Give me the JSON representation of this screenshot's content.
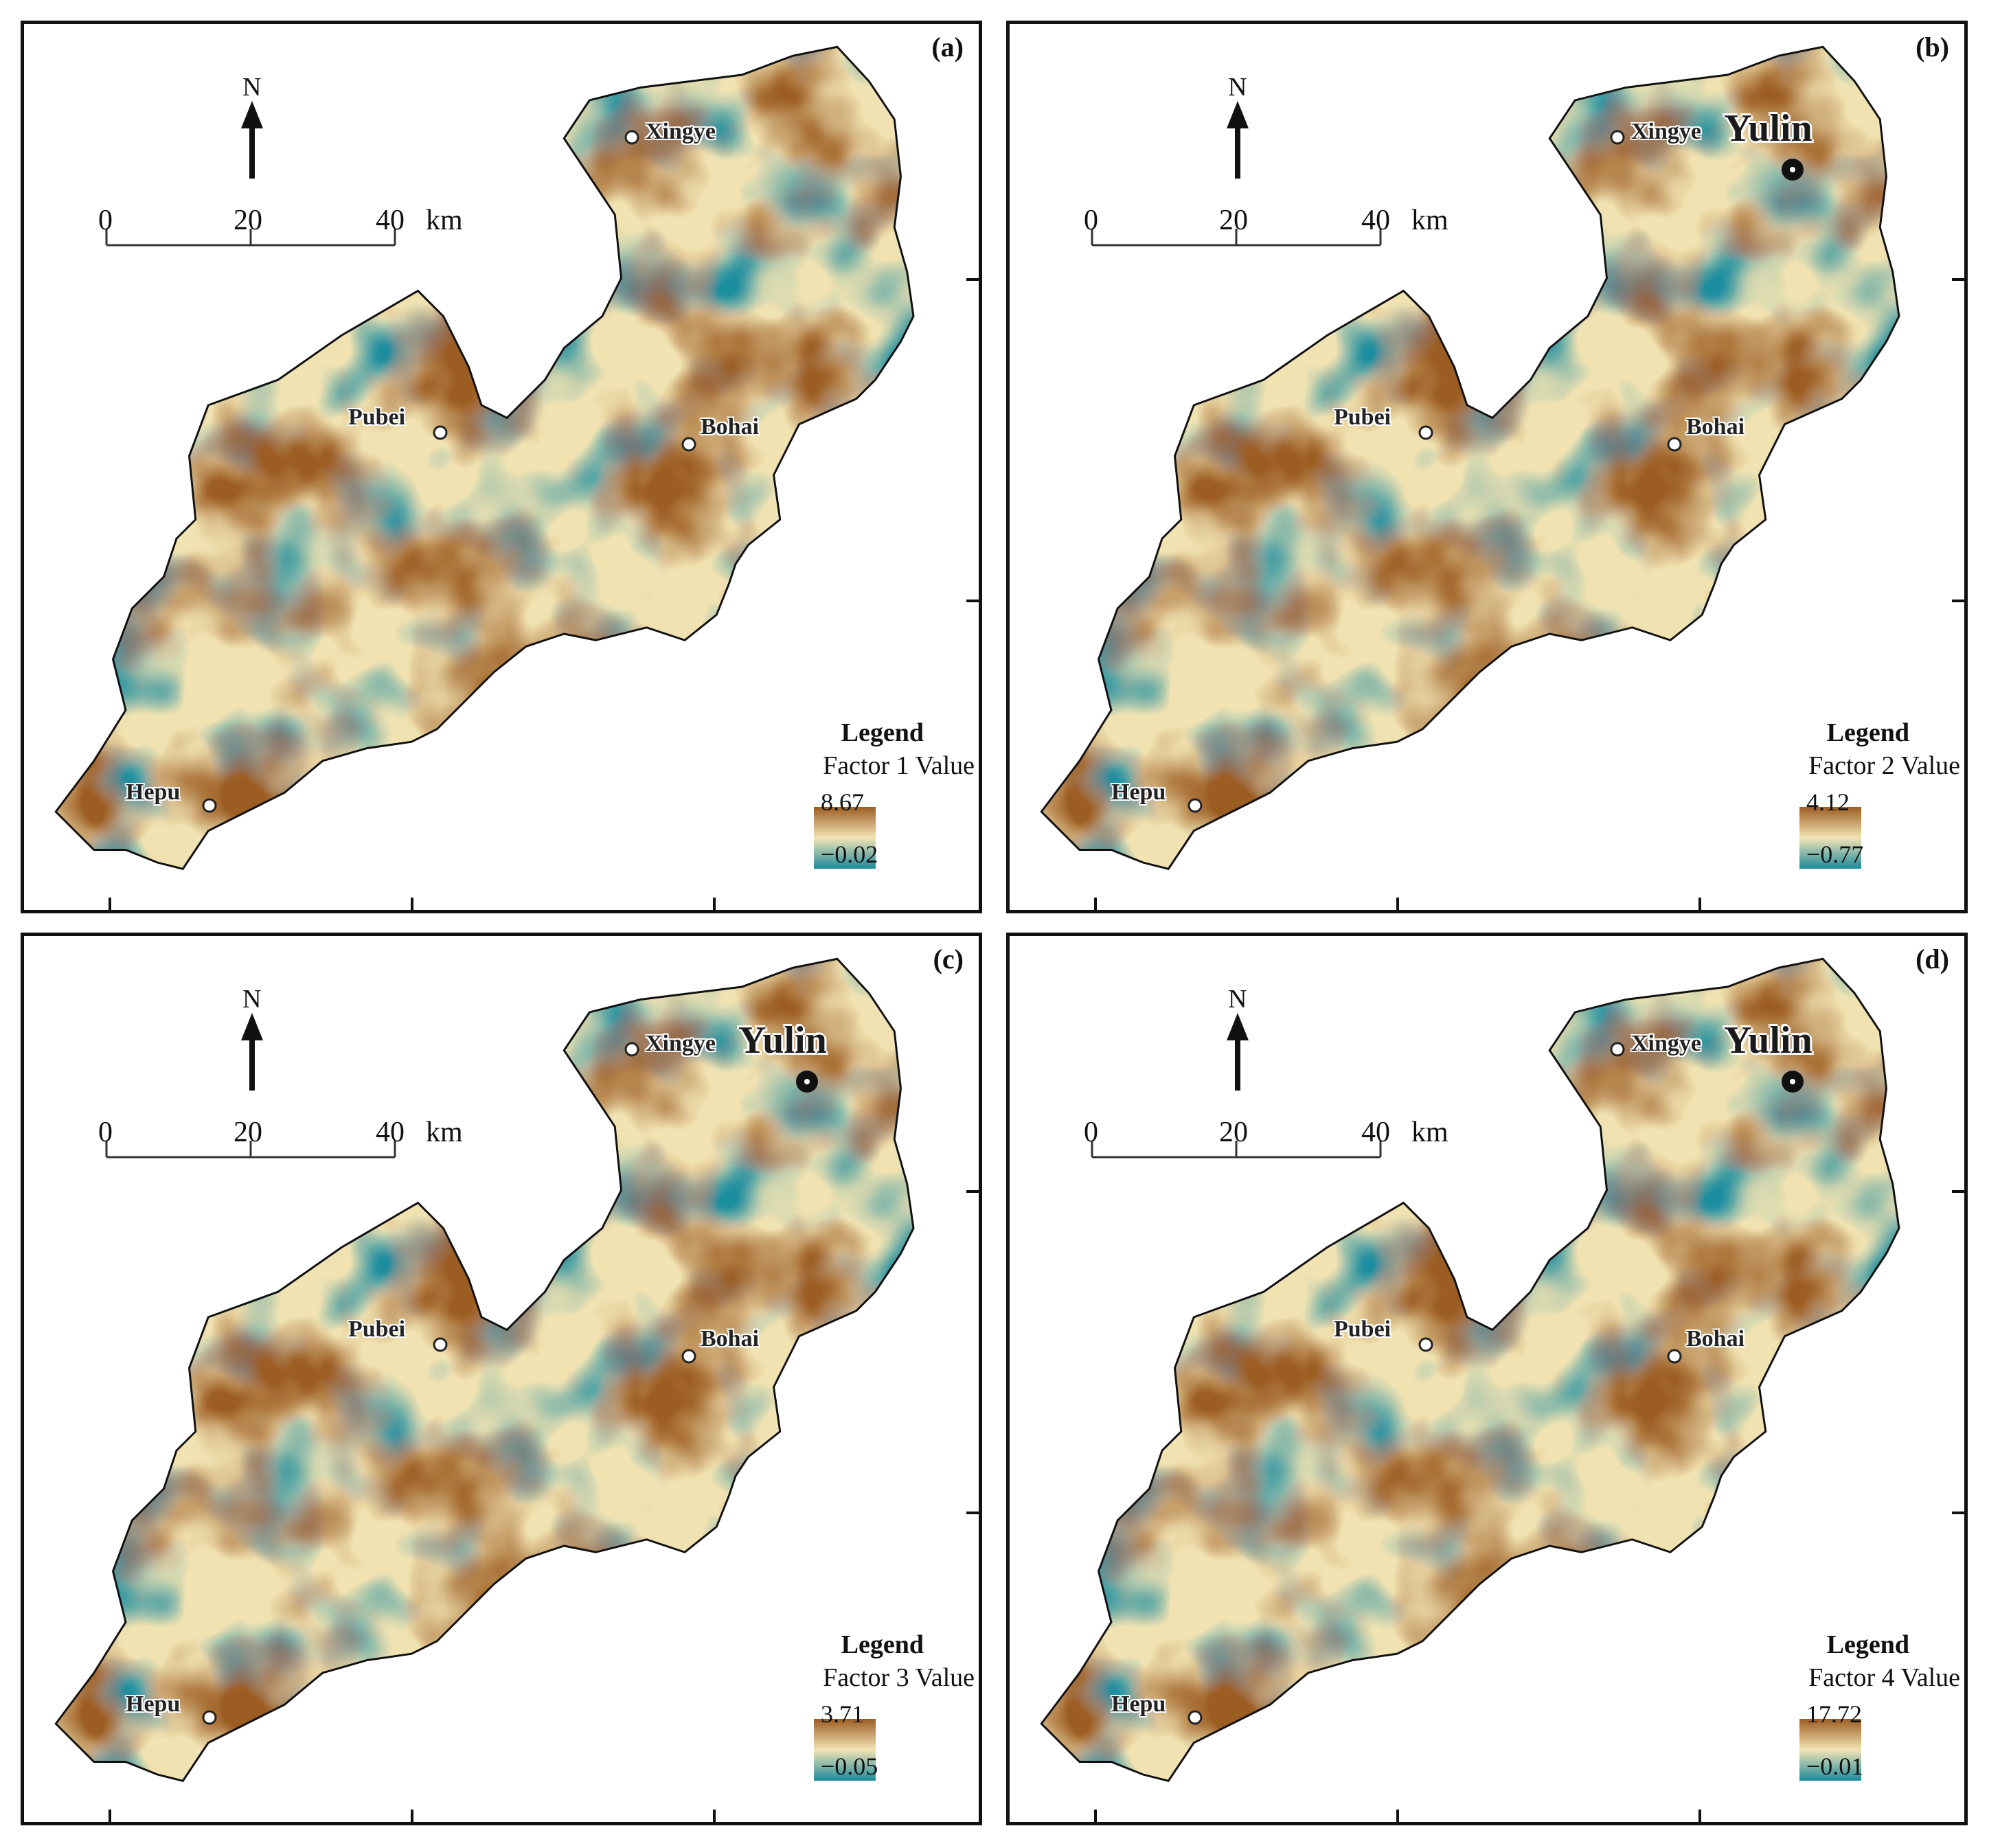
{
  "panels": [
    {
      "label": "(a)",
      "legend_title": "Legend",
      "legend_subtitle": "Factor 1 Value",
      "max": "8.67",
      "min": "−0.02",
      "show_yulin": false
    },
    {
      "label": "(b)",
      "legend_title": "Legend",
      "legend_subtitle": "Factor 2 Value",
      "max": "4.12",
      "min": "−0.77",
      "show_yulin": true
    },
    {
      "label": "(c)",
      "legend_title": "Legend",
      "legend_subtitle": "Factor 3 Value",
      "max": "3.71",
      "min": "−0.05",
      "show_yulin": true
    },
    {
      "label": "(d)",
      "legend_title": "Legend",
      "legend_subtitle": "Factor 4 Value",
      "max": "17.72",
      "min": "−0.01",
      "show_yulin": true
    }
  ],
  "north_label": "N",
  "scale": {
    "ticks": [
      "0",
      "20",
      "40"
    ],
    "unit": "km"
  },
  "places": {
    "xingye": "Xingye",
    "pubei": "Pubei",
    "bohai": "Bohai",
    "hepu": "Hepu",
    "yulin": "Yulin"
  },
  "colors": {
    "high": "#9c5d22",
    "mid": "#f3e4b4",
    "low": "#1c8a9c",
    "outline": "#111111"
  }
}
